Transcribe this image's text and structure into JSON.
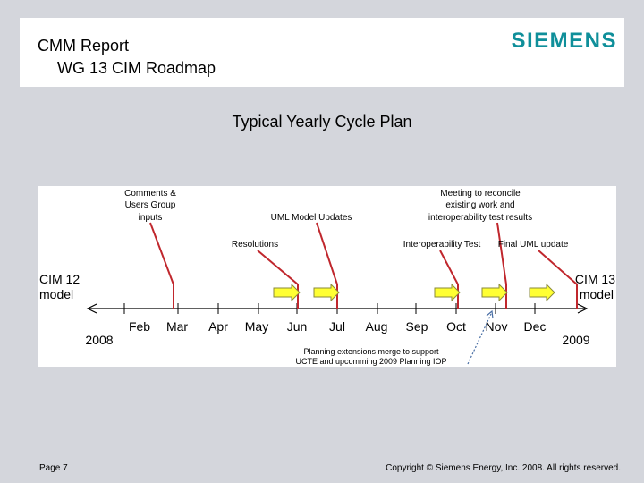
{
  "header": {
    "title_line1": "CMM Report",
    "title_line2": "WG 13 CIM Roadmap",
    "logo": "SIEMENS",
    "logo_color": "#0f8f9a"
  },
  "subtitle": "Typical Yearly Cycle Plan",
  "diagram": {
    "start_label": [
      "CIM 12",
      "model"
    ],
    "end_label": [
      "CIM 13",
      "model"
    ],
    "start_year": "2008",
    "end_year": "2009",
    "months": [
      "Feb",
      "Mar",
      "Apr",
      "May",
      "Jun",
      "Jul",
      "Aug",
      "Sep",
      "Oct",
      "Nov",
      "Dec"
    ],
    "annotations": [
      {
        "lines": [
          "Comments &",
          "Users Group",
          "inputs"
        ]
      },
      {
        "lines": [
          "UML Model Updates"
        ]
      },
      {
        "lines": [
          "Resolutions"
        ]
      },
      {
        "lines": [
          "Meeting to reconcile",
          "existing work and",
          "interoperability test results"
        ]
      },
      {
        "lines": [
          "Interoperability Test"
        ]
      },
      {
        "lines": [
          "Final UML update"
        ]
      },
      {
        "lines": [
          "Planning extensions merge to support",
          "UCTE and upcomming 2009 Planning IOP"
        ]
      }
    ],
    "milestone_color": "#c0272d",
    "arrow_color": "#ffff33"
  },
  "footer": {
    "page": "Page 7",
    "copyright": "Copyright © Siemens Energy, Inc. 2008. All rights reserved."
  }
}
